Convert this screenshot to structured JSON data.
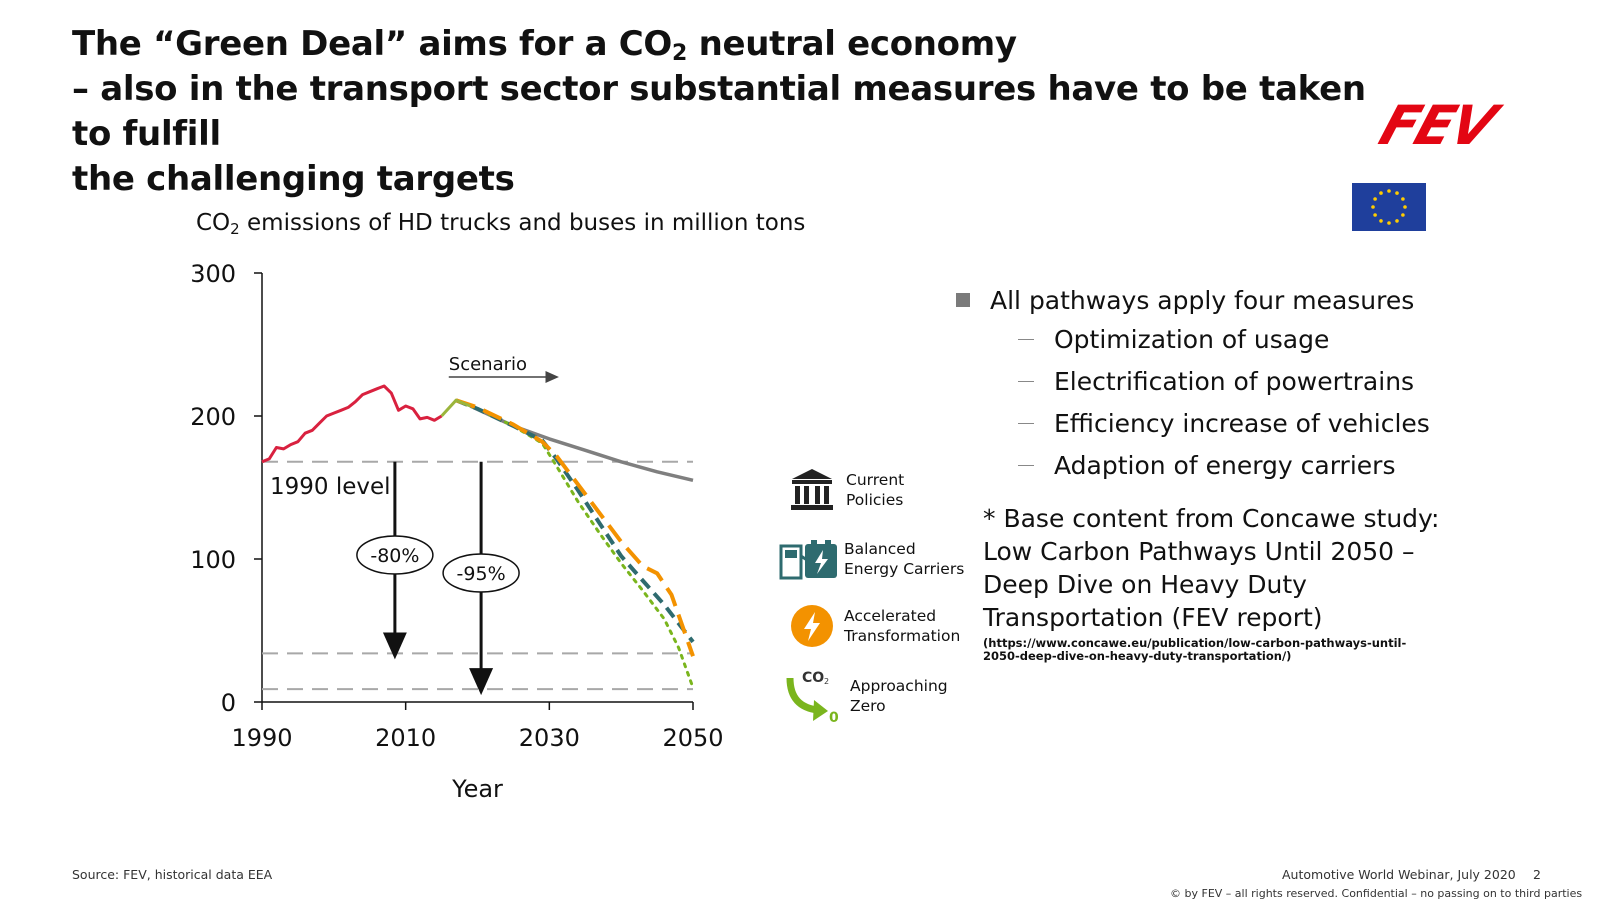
{
  "title": {
    "line1_pre": "The “Green Deal” aims for a CO",
    "line1_sub": "2",
    "line1_post": " neutral economy",
    "line2": "– also in the transport sector substantial measures have to be taken to fulfill",
    "line3": "the challenging targets"
  },
  "logo_text": "FEV",
  "colors": {
    "historical": "#d9213f",
    "current_policies": "#7f7f7f",
    "balanced": "#2e6b6f",
    "accelerated": "#f39200",
    "approaching_zero": "#7ab51d",
    "scenario_start": "#9bb53c",
    "eu_blue": "#1f3f9c",
    "eu_star": "#ffcc00",
    "logo_red": "#e30613"
  },
  "chart_data": {
    "type": "line",
    "title_pre": "CO",
    "title_sub": "2",
    "title_post": " emissions of HD trucks and buses in million tons",
    "xlabel": "Year",
    "ylabel": "",
    "xlim": [
      1990,
      2050
    ],
    "ylim": [
      0,
      300
    ],
    "x_ticks": [
      1990,
      2010,
      2030,
      2050
    ],
    "y_ticks": [
      0,
      100,
      200,
      300
    ],
    "series": [
      {
        "key": "historical",
        "x": [
          1990,
          1991,
          1992,
          1993,
          1994,
          1995,
          1996,
          1997,
          1998,
          1999,
          2000,
          2001,
          2002,
          2003,
          2004,
          2005,
          2006,
          2007,
          2008,
          2009,
          2010,
          2011,
          2012,
          2013,
          2014,
          2015
        ],
        "y": [
          168,
          170,
          178,
          177,
          180,
          182,
          188,
          190,
          195,
          200,
          202,
          204,
          206,
          210,
          215,
          217,
          219,
          221,
          216,
          204,
          207,
          205,
          198,
          199,
          197,
          200
        ]
      },
      {
        "key": "scenario_start",
        "x": [
          2015,
          2017,
          2019
        ],
        "y": [
          200,
          211,
          207
        ]
      },
      {
        "name": "Current Policies",
        "key": "current_policies",
        "x": [
          2019,
          2025,
          2030,
          2035,
          2040,
          2045,
          2050
        ],
        "y": [
          207,
          193,
          184,
          176,
          168,
          161,
          155
        ]
      },
      {
        "name": "Balanced Energy Carriers",
        "key": "balanced",
        "x": [
          2017,
          2020,
          2025,
          2029,
          2031,
          2034,
          2037,
          2040,
          2043,
          2046,
          2048,
          2050
        ],
        "y": [
          211,
          205,
          193,
          183,
          170,
          148,
          125,
          102,
          85,
          68,
          55,
          42
        ]
      },
      {
        "name": "Accelerated Transformation",
        "key": "accelerated",
        "x": [
          2017,
          2020,
          2025,
          2029,
          2031,
          2034,
          2037,
          2040,
          2043,
          2045,
          2047,
          2050
        ],
        "y": [
          211,
          206,
          194,
          182,
          172,
          152,
          132,
          112,
          95,
          90,
          75,
          32
        ]
      },
      {
        "name": "Approaching Zero",
        "key": "approaching_zero",
        "x": [
          2017,
          2020,
          2025,
          2029,
          2031,
          2034,
          2037,
          2040,
          2043,
          2046,
          2048,
          2050
        ],
        "y": [
          211,
          205,
          193,
          181,
          165,
          140,
          118,
          97,
          78,
          58,
          38,
          10
        ]
      }
    ],
    "reference_lines": [
      {
        "label": "1990 level",
        "y": 168
      },
      {
        "label": "",
        "y": 34
      },
      {
        "label": "",
        "y": 9
      }
    ],
    "annotations": {
      "scenario": "Scenario",
      "reduction_80": "-80%",
      "reduction_95": "-95%"
    },
    "legend_position": "right"
  },
  "legend": [
    {
      "key": "current_policies",
      "icon": "bank-icon",
      "label": "Current\nPolicies"
    },
    {
      "key": "balanced",
      "icon": "fuel-pump-battery-icon",
      "label": "Balanced\nEnergy Carriers"
    },
    {
      "key": "accelerated",
      "icon": "lightning-icon",
      "label": "Accelerated\nTransformation"
    },
    {
      "key": "approaching_zero",
      "icon": "co2-down-arrow-icon",
      "label": "Approaching\nZero",
      "icon_text": "CO",
      "icon_sub": "2",
      "icon_zero": "0"
    }
  ],
  "bullets": {
    "main": "All pathways apply four measures",
    "subs": [
      "Optimization of usage",
      "Electrification of powertrains",
      "Efficiency increase of vehicles",
      "Adaption of energy carriers"
    ]
  },
  "note": {
    "text": "* Base content from Concawe study: Low Carbon Pathways Until 2050 – Deep Dive on Heavy Duty Transportation (FEV report)",
    "url": "(https://www.concawe.eu/publication/low-carbon-pathways-until-2050-deep-dive-on-heavy-duty-transportation/)"
  },
  "footer": {
    "source": "Source: FEV, historical data EEA",
    "event": "Automotive World Webinar, July 2020",
    "page": "2",
    "copyright": "© by FEV – all rights reserved. Confidential – no passing on to third parties"
  }
}
